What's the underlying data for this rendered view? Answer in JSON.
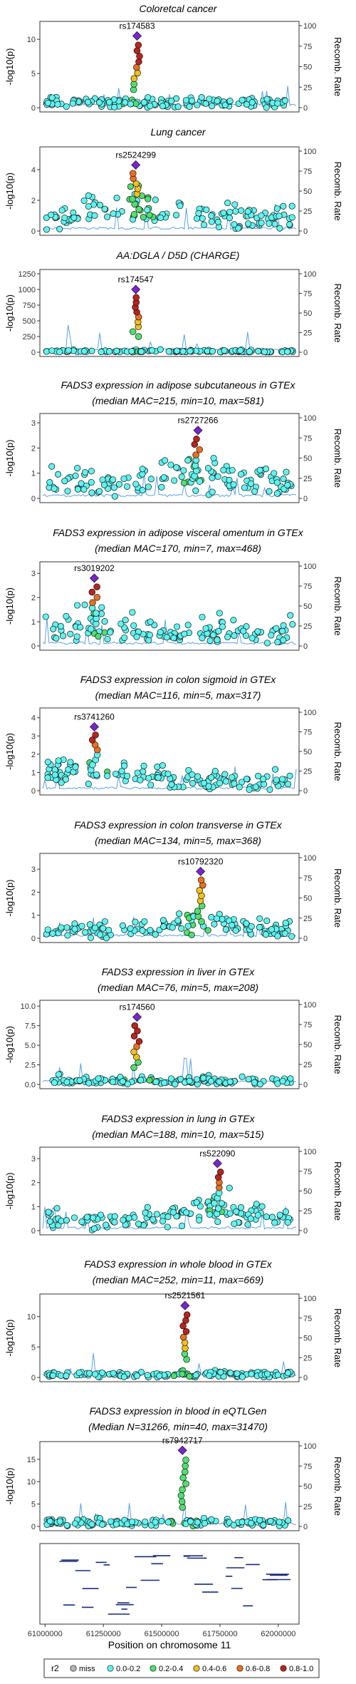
{
  "labels": {
    "ylabel": "-log10(p)",
    "y2label": "Recomb. Rate",
    "xlabel": "Position on chromosome 11",
    "legend_title": "r2"
  },
  "panels": [
    {
      "title_lines": [
        "Coloretcal cancer"
      ],
      "lead": "rs174583",
      "ylim": [
        0,
        12
      ],
      "yticks": [
        0,
        5,
        10
      ]
    },
    {
      "title_lines": [
        "Lung cancer"
      ],
      "lead": "rs2524299",
      "ylim": [
        0,
        5.2
      ],
      "yticks": [
        0,
        2,
        4
      ]
    },
    {
      "title_lines": [
        "AA:DGLA / D5D (CHARGE)"
      ],
      "lead": "rs174547",
      "ylim": [
        0,
        1250
      ],
      "yticks": [
        0,
        250,
        500,
        750,
        1000,
        1250
      ]
    },
    {
      "title_lines": [
        "FADS3 expression in adipose subcutaneous in GTEx",
        "(median MAC=215, min=10, max=581)"
      ],
      "lead": "rs2727266",
      "ylim": [
        0,
        3.2
      ],
      "yticks": [
        0,
        1,
        2,
        3
      ]
    },
    {
      "title_lines": [
        "FADS3 expression in adipose visceral omentum in GTEx",
        "(median MAC=170, min=7, max=468)"
      ],
      "lead": "rs3019202",
      "ylim": [
        0,
        3.3
      ],
      "yticks": [
        0,
        1,
        2,
        3
      ]
    },
    {
      "title_lines": [
        "FADS3 expression in colon sigmoid in GTEx",
        "(median MAC=116, min=5, max=317)"
      ],
      "lead": "rs3741260",
      "ylim": [
        0,
        4.3
      ],
      "yticks": [
        0,
        1,
        2,
        3,
        4
      ]
    },
    {
      "title_lines": [
        "FADS3 expression in colon transverse in GTEx",
        "(median MAC=134, min=5, max=368)"
      ],
      "lead": "rs10792320",
      "ylim": [
        0,
        3.5
      ],
      "yticks": [
        0,
        1,
        2,
        3
      ]
    },
    {
      "title_lines": [
        "FADS3 expression in liver in GTEx",
        "(median MAC=76, min=5, max=208)"
      ],
      "lead": "rs174560",
      "ylim": [
        0,
        10.2
      ],
      "yticks": [
        0.0,
        2.5,
        5.0,
        7.5,
        10.0
      ],
      "ytick_labels": [
        "0.0",
        "2.5",
        "5.0",
        "7.5",
        "10.0"
      ]
    },
    {
      "title_lines": [
        "FADS3 expression in lung in GTEx",
        "(median MAC=188, min=10, max=515)"
      ],
      "lead": "rs522090",
      "ylim": [
        0,
        3.3
      ],
      "yticks": [
        0,
        1,
        2,
        3
      ]
    },
    {
      "title_lines": [
        "FADS3 expression in whole blood in GTEx",
        "(median MAC=252, min=11, max=669)"
      ],
      "lead": "rs2521561",
      "ylim": [
        0,
        13
      ],
      "yticks": [
        0,
        5,
        10
      ]
    },
    {
      "title_lines": [
        "FADS3 expression in blood in eQTLGen",
        "(Median N=31266, min=40, max=31470)"
      ],
      "lead": "rs7942717",
      "ylim": [
        0,
        18
      ],
      "yticks": [
        0,
        5,
        10,
        15
      ]
    }
  ],
  "recomb_ticks": [
    0,
    25,
    50,
    75,
    100
  ],
  "x_ticks": [
    "61000000",
    "61250000",
    "61500000",
    "61750000",
    "62000000"
  ],
  "legend_items": [
    {
      "label": "miss",
      "color": "#b4b4b4"
    },
    {
      "label": "0.0-0.2",
      "color": "#5ff4f0"
    },
    {
      "label": "0.2-0.4",
      "color": "#4fe070"
    },
    {
      "label": "0.4-0.6",
      "color": "#f0c01e"
    },
    {
      "label": "0.6-0.8",
      "color": "#ea7020"
    },
    {
      "label": "0.8-1.0",
      "color": "#b8241e"
    }
  ],
  "chart_data": [
    {
      "type": "scatter",
      "title": "Coloretcal cancer",
      "ylabel": "-log10(p)",
      "y2label": "Recomb. Rate",
      "ylim": [
        0,
        12
      ],
      "y2lim": [
        0,
        100
      ],
      "lead_snp": "rs174583",
      "lead_value": 10.5,
      "top_values_r2_0.8_1.0": [
        10.2,
        9.8,
        9.4,
        9.0
      ]
    },
    {
      "type": "scatter",
      "title": "Lung cancer",
      "ylim": [
        0,
        5.2
      ],
      "lead_snp": "rs2524299",
      "lead_value": 4.3
    },
    {
      "type": "scatter",
      "title": "AA:DGLA / D5D (CHARGE)",
      "ylim": [
        0,
        1250
      ],
      "lead_snp": "rs174547",
      "lead_value": 1000
    },
    {
      "type": "scatter",
      "title": "FADS3 expression in adipose subcutaneous in GTEx",
      "ylim": [
        0,
        3.2
      ],
      "lead_snp": "rs2727266",
      "lead_value": 2.7
    },
    {
      "type": "scatter",
      "title": "FADS3 expression in adipose visceral omentum in GTEx",
      "ylim": [
        0,
        3.3
      ],
      "lead_snp": "rs3019202",
      "lead_value": 2.8
    },
    {
      "type": "scatter",
      "title": "FADS3 expression in colon sigmoid in GTEx",
      "ylim": [
        0,
        4.3
      ],
      "lead_snp": "rs3741260",
      "lead_value": 3.5
    },
    {
      "type": "scatter",
      "title": "FADS3 expression in colon transverse in GTEx",
      "ylim": [
        0,
        3.5
      ],
      "lead_snp": "rs10792320",
      "lead_value": 2.9
    },
    {
      "type": "scatter",
      "title": "FADS3 expression in liver in GTEx",
      "ylim": [
        0,
        10.2
      ],
      "lead_snp": "rs174560",
      "lead_value": 8.6
    },
    {
      "type": "scatter",
      "title": "FADS3 expression in lung in GTEx",
      "ylim": [
        0,
        3.3
      ],
      "lead_snp": "rs522090",
      "lead_value": 2.8
    },
    {
      "type": "scatter",
      "title": "FADS3 expression in whole blood in GTEx",
      "ylim": [
        0,
        13
      ],
      "lead_snp": "rs2521561",
      "lead_value": 11.8
    },
    {
      "type": "scatter",
      "title": "FADS3 expression in blood in eQTLGen",
      "ylim": [
        0,
        18
      ],
      "lead_snp": "rs7942717",
      "lead_value": 17.0
    }
  ]
}
